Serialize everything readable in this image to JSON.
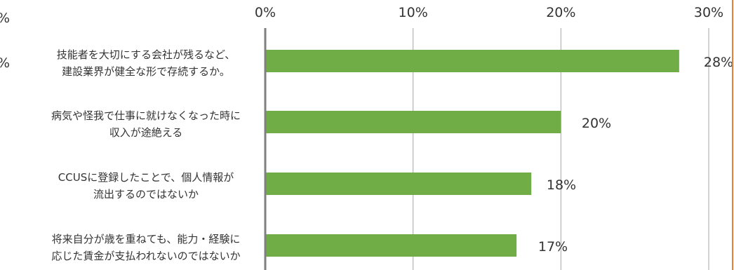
{
  "chart_data": {
    "type": "bar",
    "orientation": "horizontal",
    "categories": [
      [
        "技能者を大切にする会社が残るなど、",
        "建設業界が健全な形で存続するか。"
      ],
      [
        "病気や怪我で仕事に就けなくなった時に",
        "収入が途絶える"
      ],
      [
        "CCUSに登録したことで、個人情報が",
        "流出するのではないか"
      ],
      [
        "将来自分が歳を重ねても、能力・経験に",
        "応じた賃金が支払われないのではないか"
      ]
    ],
    "values": [
      28,
      20,
      18,
      17
    ],
    "data_labels": [
      "28%",
      "20%",
      "18%",
      "17%"
    ],
    "x_ticks": [
      0,
      10,
      20,
      30
    ],
    "x_tick_labels": [
      "0%",
      "10%",
      "20%",
      "30%"
    ],
    "xlim": [
      0,
      30
    ],
    "grid": true,
    "bar_color": "#70AD47",
    "axis_color": "#808080",
    "grid_color": "#A6A6A6",
    "accent_border_color": "#ED7D31",
    "partial_left_labels": [
      "%",
      "%"
    ]
  }
}
